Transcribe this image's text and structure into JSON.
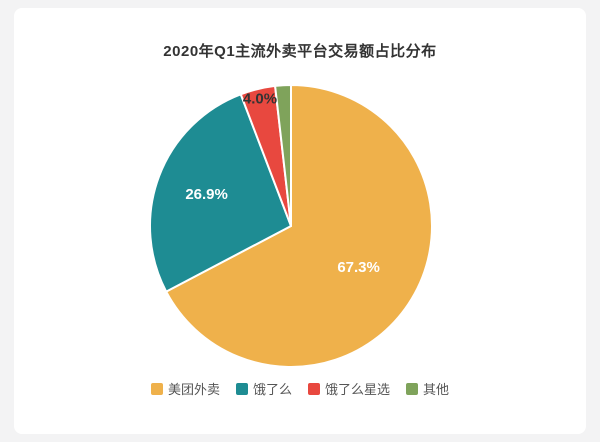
{
  "chart_data": {
    "type": "pie",
    "title": "2020年Q1主流外卖平台交易额占比分布",
    "categories": [
      "美团外卖",
      "饿了么",
      "饿了么星选",
      "其他"
    ],
    "values": [
      67.3,
      26.9,
      4.0,
      1.8
    ],
    "slice_labels": [
      "67.3%",
      "26.9%",
      "4.0%",
      ""
    ],
    "colors": [
      "#EFB14B",
      "#1E8C93",
      "#E8483F",
      "#7FA35B"
    ],
    "label_radius_factor": [
      0.56,
      0.64,
      0.93,
      0
    ],
    "label_colors": [
      "#ffffff",
      "#ffffff",
      "#333333",
      ""
    ],
    "legend_position": "bottom",
    "start_angle": "top",
    "direction": "clockwise",
    "background_color": "#ffffff",
    "page_background": "#f3f3f4"
  }
}
